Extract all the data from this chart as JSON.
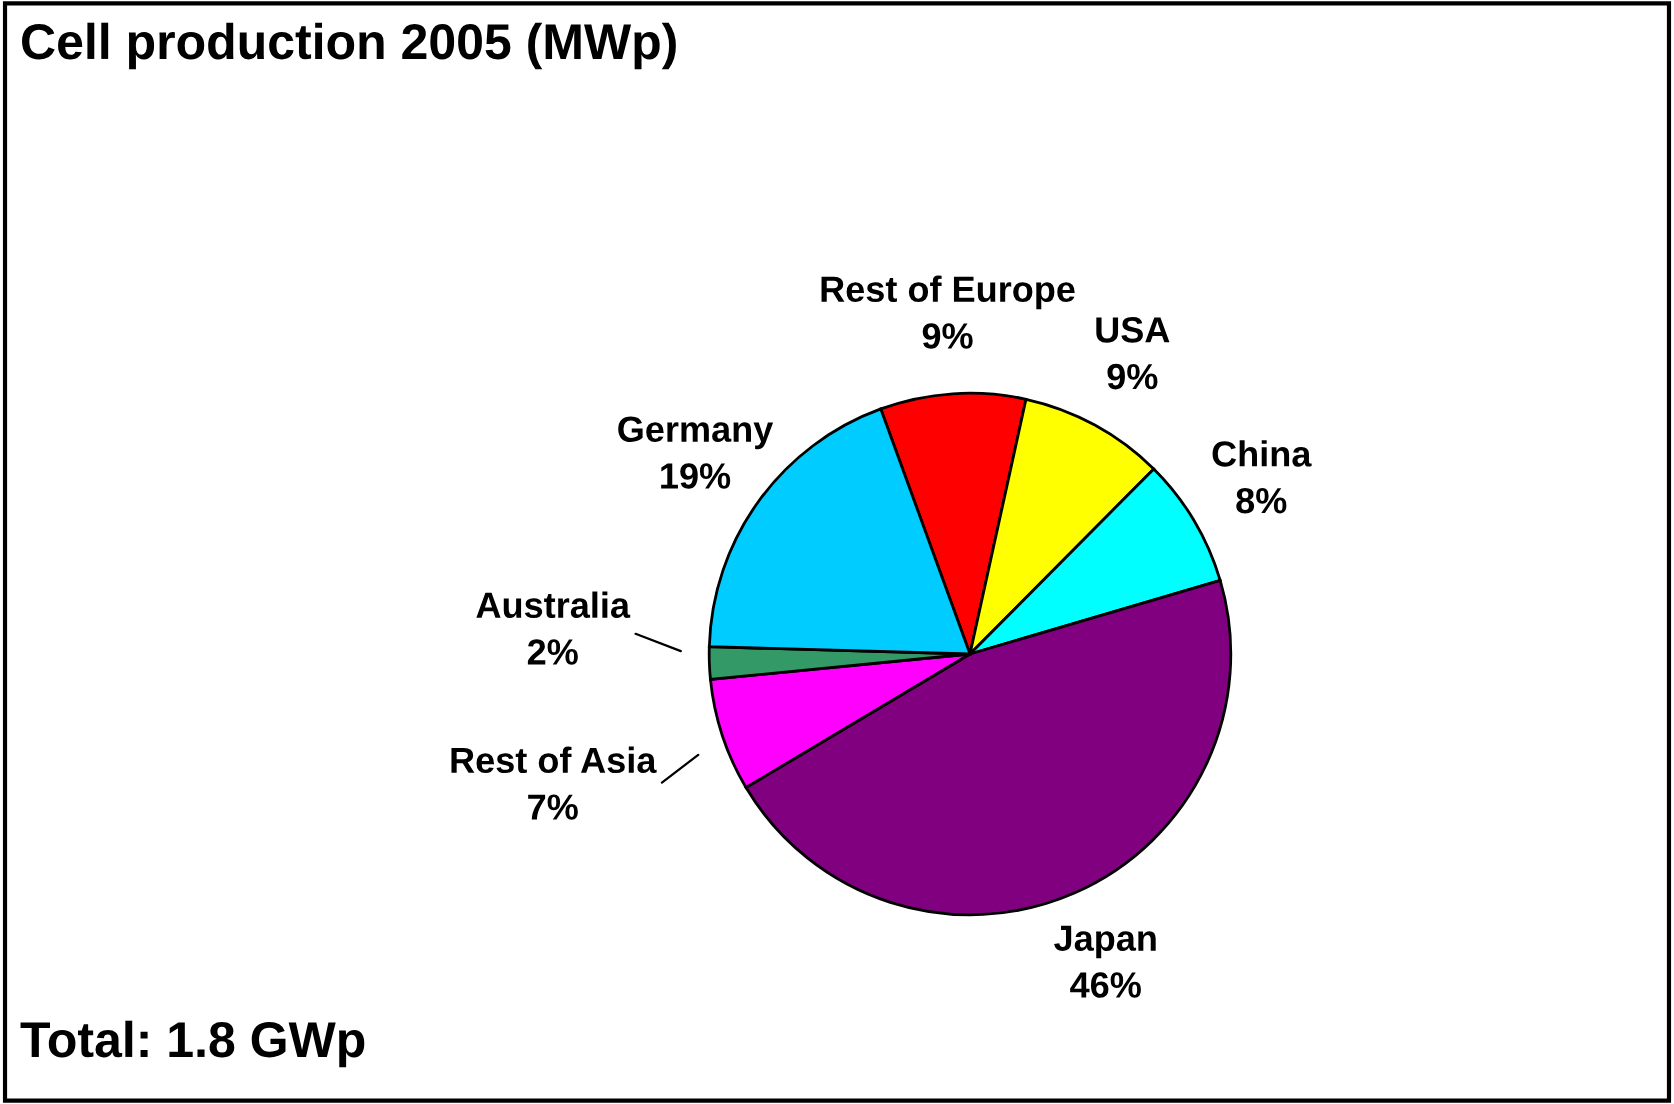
{
  "chart_data": {
    "type": "pie",
    "title": "Cell production 2005 (MWp)",
    "categories": [
      "Rest of Europe",
      "USA",
      "China",
      "Japan",
      "Rest of Asia",
      "Australia",
      "Germany"
    ],
    "values": [
      9,
      9,
      8,
      46,
      7,
      2,
      19
    ],
    "value_labels": [
      "9%",
      "9%",
      "8%",
      "46%",
      "7%",
      "2%",
      "19%"
    ],
    "colors": [
      "#ff0000",
      "#ffff00",
      "#00ffff",
      "#800080",
      "#ff00ff",
      "#339966",
      "#00ccff"
    ],
    "annotations": [
      "Total: 1.8 GWp"
    ]
  }
}
